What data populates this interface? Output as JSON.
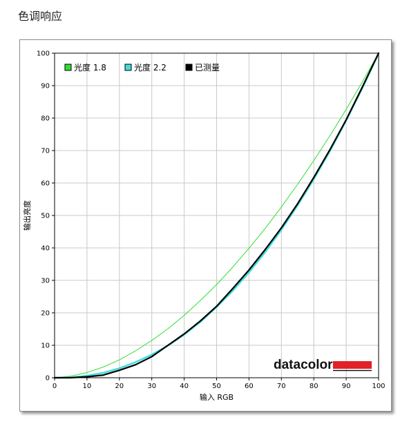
{
  "header": {
    "title": "色调响应"
  },
  "logo": {
    "text": "datacolor",
    "bar_color": "#e02127"
  },
  "chart_data": {
    "type": "line",
    "title": "",
    "xlabel": "输入 RGB",
    "ylabel": "输出亮度",
    "xlim": [
      0,
      100
    ],
    "ylim": [
      0,
      100
    ],
    "x_ticks": [
      0,
      10,
      20,
      30,
      40,
      50,
      60,
      70,
      80,
      90,
      100
    ],
    "y_ticks": [
      0,
      10,
      20,
      30,
      40,
      50,
      60,
      70,
      80,
      90,
      100
    ],
    "grid": true,
    "legend_position": "top-left",
    "series": [
      {
        "name": "光度 1.8",
        "color": "#33dd33",
        "x": [
          0,
          5,
          10,
          15,
          20,
          25,
          30,
          35,
          40,
          45,
          50,
          55,
          60,
          65,
          70,
          75,
          80,
          85,
          90,
          95,
          100
        ],
        "y": [
          0,
          0.5,
          1.6,
          3.3,
          5.5,
          8.3,
          11.5,
          15.1,
          19.2,
          23.8,
          28.7,
          34.1,
          39.9,
          46.0,
          52.6,
          59.6,
          66.9,
          74.6,
          82.7,
          91.2,
          100
        ]
      },
      {
        "name": "光度 2.2",
        "color": "#44dddd",
        "x": [
          0,
          5,
          10,
          15,
          20,
          25,
          30,
          35,
          40,
          45,
          50,
          55,
          60,
          65,
          70,
          75,
          80,
          85,
          90,
          95,
          100
        ],
        "y": [
          0,
          0.1,
          0.6,
          1.5,
          2.9,
          4.8,
          7.1,
          9.9,
          13.3,
          17.2,
          21.8,
          26.8,
          32.5,
          38.7,
          45.6,
          53.1,
          61.2,
          69.9,
          79.3,
          89.3,
          100
        ]
      },
      {
        "name": "已测量",
        "color": "#000000",
        "x": [
          0,
          5,
          10,
          15,
          20,
          25,
          30,
          35,
          40,
          45,
          50,
          55,
          60,
          65,
          70,
          75,
          80,
          85,
          90,
          95,
          100
        ],
        "y": [
          0,
          0,
          0.3,
          0.8,
          2.3,
          4.0,
          6.5,
          10.0,
          13.5,
          17.5,
          22.0,
          27.5,
          33.2,
          39.5,
          46.2,
          53.6,
          61.7,
          70.3,
          79.5,
          89.6,
          100
        ]
      }
    ]
  }
}
